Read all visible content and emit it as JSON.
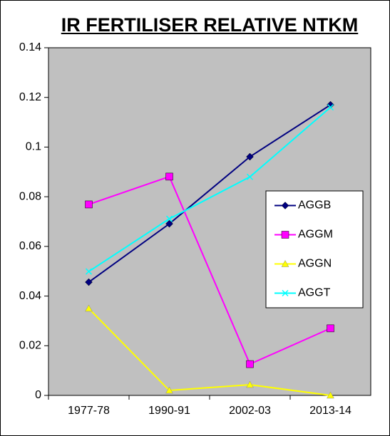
{
  "chart_data": {
    "type": "line",
    "title": "IR FERTILISER RELATIVE NTKM",
    "categories": [
      "1977-78",
      "1990-91",
      "2002-03",
      "2013-14"
    ],
    "series": [
      {
        "name": "AGGB",
        "color": "#000080",
        "marker": "diamond",
        "values": [
          0.0456,
          0.0691,
          0.0961,
          0.117
        ]
      },
      {
        "name": "AGGM",
        "color": "#ff00ff",
        "marker": "square",
        "values": [
          0.0769,
          0.0881,
          0.0126,
          0.027
        ]
      },
      {
        "name": "AGGN",
        "color": "#ffff00",
        "marker": "triangle",
        "values": [
          0.035,
          0.002,
          0.0043,
          0
        ]
      },
      {
        "name": "AGGT",
        "color": "#00ffff",
        "marker": "x",
        "values": [
          0.0499,
          0.0711,
          0.088,
          0.116
        ]
      }
    ],
    "ylim": [
      0,
      0.14
    ],
    "yticks": [
      0,
      0.02,
      0.04,
      0.06,
      0.08,
      0.1,
      0.12,
      0.14
    ],
    "plot_background": "#c0c0c0",
    "grid": false,
    "legend": "right"
  }
}
